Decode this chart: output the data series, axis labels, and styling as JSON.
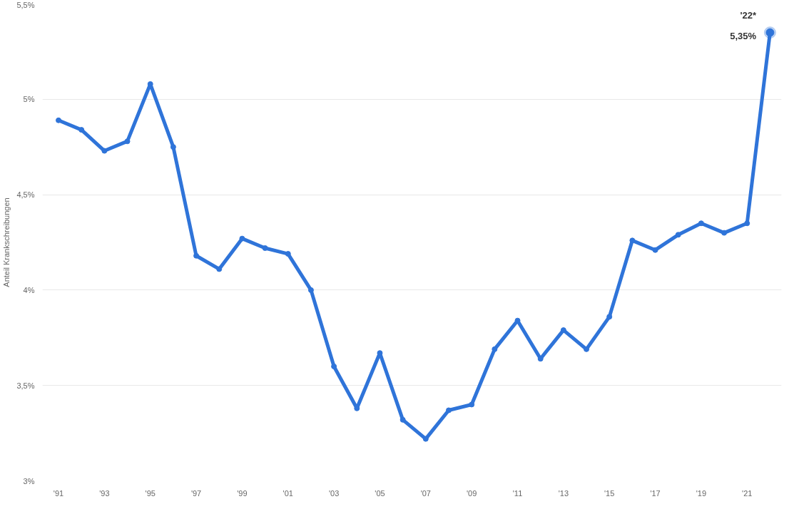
{
  "chart_data": {
    "type": "line",
    "ylabel": "Anteil Krankschreibungen",
    "x": [
      1991,
      1992,
      1993,
      1994,
      1995,
      1996,
      1997,
      1998,
      1999,
      2000,
      2001,
      2002,
      2003,
      2004,
      2005,
      2006,
      2007,
      2008,
      2009,
      2010,
      2011,
      2012,
      2013,
      2014,
      2015,
      2016,
      2017,
      2018,
      2019,
      2020,
      2021,
      2022
    ],
    "series": [
      {
        "color": "#2f74d9",
        "values": [
          4.89,
          4.84,
          4.73,
          4.78,
          5.08,
          4.75,
          4.18,
          4.11,
          4.27,
          4.22,
          4.19,
          4.0,
          3.6,
          3.38,
          3.67,
          3.32,
          3.22,
          3.37,
          3.4,
          3.69,
          3.84,
          3.64,
          3.79,
          3.69,
          3.86,
          4.26,
          4.21,
          4.29,
          4.35,
          4.3,
          4.35,
          5.35
        ],
        "value_labels": [
          null,
          null,
          null,
          null,
          null,
          null,
          null,
          null,
          null,
          null,
          null,
          null,
          null,
          null,
          null,
          null,
          null,
          null,
          null,
          null,
          null,
          null,
          null,
          null,
          null,
          null,
          null,
          null,
          null,
          null,
          null,
          "5,35%"
        ]
      }
    ],
    "annotations": [
      "'22*"
    ],
    "xlim": [
      1990.3,
      2022.5
    ],
    "ylim": [
      3,
      5.5
    ],
    "xticks": [
      {
        "value": 1991,
        "label": "'91"
      },
      {
        "value": 1993,
        "label": "'93"
      },
      {
        "value": 1995,
        "label": "'95"
      },
      {
        "value": 1997,
        "label": "'97"
      },
      {
        "value": 1999,
        "label": "'99"
      },
      {
        "value": 2001,
        "label": "'01"
      },
      {
        "value": 2003,
        "label": "'03"
      },
      {
        "value": 2005,
        "label": "'05"
      },
      {
        "value": 2007,
        "label": "'07"
      },
      {
        "value": 2009,
        "label": "'09"
      },
      {
        "value": 2011,
        "label": "'11"
      },
      {
        "value": 2013,
        "label": "'13"
      },
      {
        "value": 2015,
        "label": "'15"
      },
      {
        "value": 2017,
        "label": "'17"
      },
      {
        "value": 2019,
        "label": "'19"
      },
      {
        "value": 2021,
        "label": "'21"
      }
    ],
    "yticks": [
      {
        "value": 3,
        "label": "3%"
      },
      {
        "value": 3.5,
        "label": "3,5%"
      },
      {
        "value": 4,
        "label": "4%"
      },
      {
        "value": 4.5,
        "label": "4,5%"
      },
      {
        "value": 5,
        "label": "5%"
      },
      {
        "value": 5.5,
        "label": "5,5%"
      }
    ],
    "grid": "y",
    "marker": "circle",
    "line_style": "solid"
  }
}
